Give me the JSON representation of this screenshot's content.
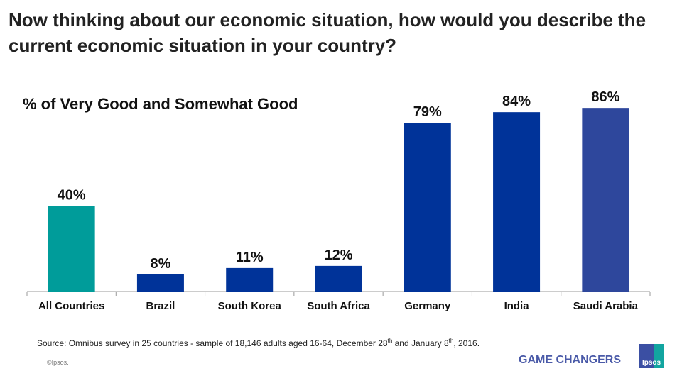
{
  "title": "Now thinking about our economic situation, how would you describe the current economic situation in your country?",
  "footer": {
    "source_main": "Source: Omnibus survey in 25 countries - sample of 18,146 adults aged 16-64,  December 28",
    "source_sup1": "th",
    "source_mid": " and January 8",
    "source_sup2": "th",
    "source_end": ",  2016.",
    "copyright": "©Ipsos.",
    "tagline": "GAME CHANGERS",
    "logo": "Ipsos"
  },
  "chart_data": {
    "type": "bar",
    "subtitle": "% of Very Good and Somewhat Good",
    "categories": [
      "All Countries",
      "Brazil",
      "South Korea",
      "South Africa",
      "Germany",
      "India",
      "Saudi Arabia"
    ],
    "values": [
      40,
      8,
      11,
      12,
      79,
      84,
      86
    ],
    "labels": [
      "40%",
      "8%",
      "11%",
      "12%",
      "79%",
      "84%",
      "86%"
    ],
    "colors": [
      "#009C9A",
      "#003399",
      "#003399",
      "#003399",
      "#003399",
      "#003399",
      "#2E479C"
    ],
    "ylim": [
      0,
      100
    ],
    "grid": false
  }
}
